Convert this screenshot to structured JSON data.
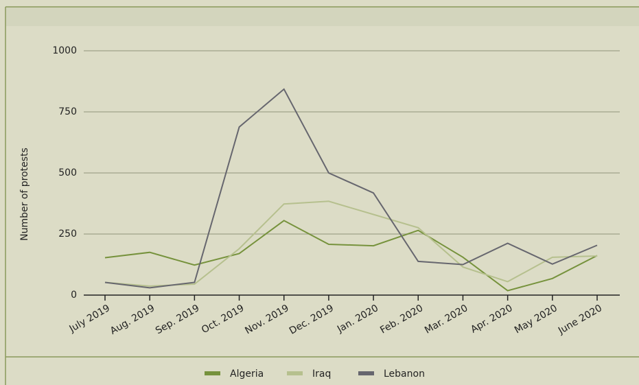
{
  "chart_data": {
    "type": "line",
    "y_label": "Number of protests",
    "categories": [
      "July 2019",
      "Aug. 2019",
      "Sep. 2019",
      "Oct. 2019",
      "Nov. 2019",
      "Dec. 2019",
      "Jan. 2020",
      "Feb. 2020",
      "Mar. 2020",
      "Apr. 2020",
      "May 2020",
      "June 2020"
    ],
    "series": [
      {
        "name": "Algeria",
        "color": "#76923c",
        "values": [
          153,
          175,
          123,
          170,
          305,
          208,
          202,
          265,
          155,
          18,
          68,
          162
        ]
      },
      {
        "name": "Iraq",
        "color": "#b6c08e",
        "values": [
          52,
          37,
          45,
          190,
          373,
          384,
          330,
          276,
          115,
          55,
          155,
          160
        ]
      },
      {
        "name": "Lebanon",
        "color": "#66666e",
        "values": [
          52,
          30,
          52,
          688,
          843,
          500,
          418,
          138,
          125,
          212,
          127,
          204
        ]
      }
    ],
    "ylim": [
      0,
      1000
    ],
    "yticks": [
      0,
      250,
      500,
      750,
      1000
    ],
    "grid": true,
    "legend": "bottom"
  }
}
